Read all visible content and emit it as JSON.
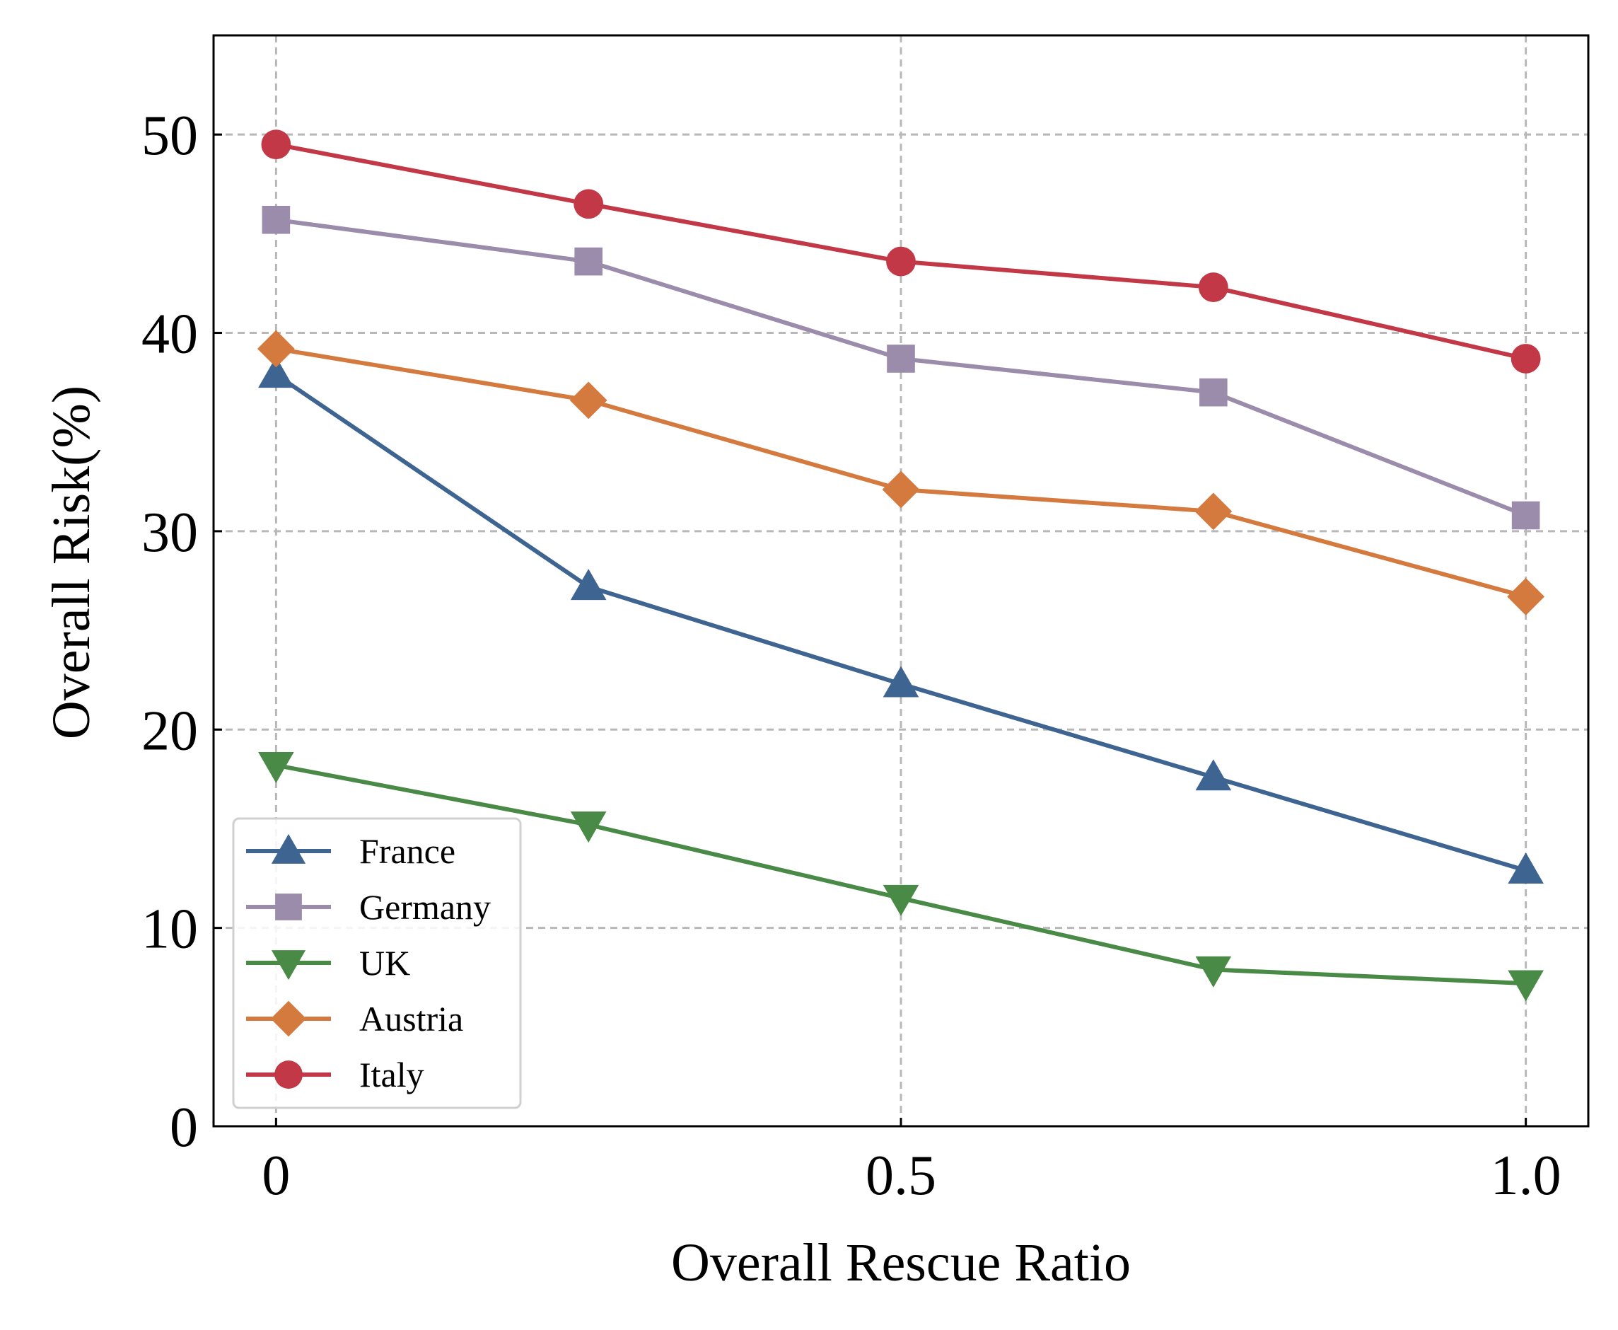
{
  "chart_data": {
    "type": "line",
    "title": "",
    "xlabel": "Overall Rescue Ratio",
    "ylabel": "Overall Risk(%)",
    "x": [
      0,
      0.25,
      0.5,
      0.75,
      1.0
    ],
    "xlim": [
      -0.05,
      1.05
    ],
    "ylim": [
      0,
      55
    ],
    "xticks": [
      0,
      0.5,
      1.0
    ],
    "xtick_labels": [
      "0",
      "0.5",
      "1.0"
    ],
    "yticks": [
      0,
      10,
      20,
      30,
      40,
      50
    ],
    "ytick_labels": [
      "0",
      "10",
      "20",
      "30",
      "40",
      "50"
    ],
    "grid": true,
    "legend_position": "lower-left",
    "series": [
      {
        "name": "France",
        "marker": "triangle-up",
        "color": "#3e6491",
        "values": [
          37.9,
          27.2,
          22.3,
          17.6,
          12.9
        ]
      },
      {
        "name": "Germany",
        "marker": "square",
        "color": "#9c8cab",
        "values": [
          45.7,
          43.6,
          38.7,
          37.0,
          30.8
        ]
      },
      {
        "name": "UK",
        "marker": "triangle-down",
        "color": "#4a8a47",
        "values": [
          18.2,
          15.2,
          11.5,
          7.9,
          7.2
        ]
      },
      {
        "name": "Austria",
        "marker": "diamond",
        "color": "#d47a3e",
        "values": [
          39.2,
          36.6,
          32.1,
          31.0,
          26.7
        ]
      },
      {
        "name": "Italy",
        "marker": "circle",
        "color": "#c23847",
        "values": [
          49.5,
          46.5,
          43.6,
          42.3,
          38.7
        ]
      }
    ]
  }
}
